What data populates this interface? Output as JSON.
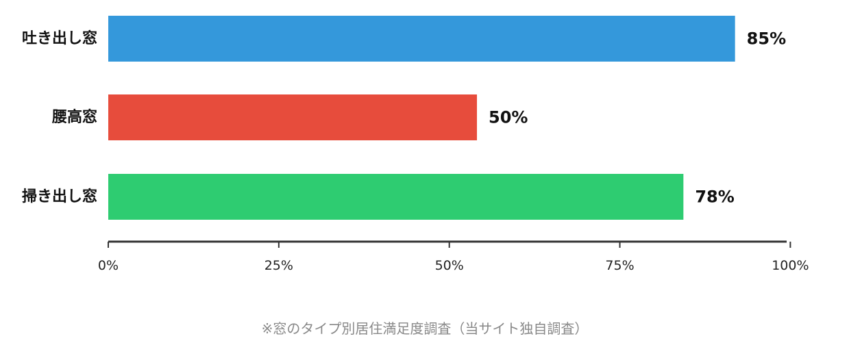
{
  "chart_data": {
    "type": "bar",
    "orientation": "horizontal",
    "categories": [
      "吐き出し窓",
      "腰高窓",
      "掃き出し窓"
    ],
    "values": [
      85,
      50,
      78
    ],
    "value_labels": [
      "85%",
      "50%",
      "78%"
    ],
    "colors": [
      "#3498db",
      "#e74c3c",
      "#2ecc71"
    ],
    "xlim": [
      0,
      92
    ],
    "xticks": [
      0,
      25,
      50,
      75,
      100
    ],
    "xtick_labels": [
      "0%",
      "25%",
      "50%",
      "75%",
      "100%"
    ],
    "grid": false,
    "note": "※窓のタイプ別居住満足度調査（当サイト独自調査）"
  }
}
